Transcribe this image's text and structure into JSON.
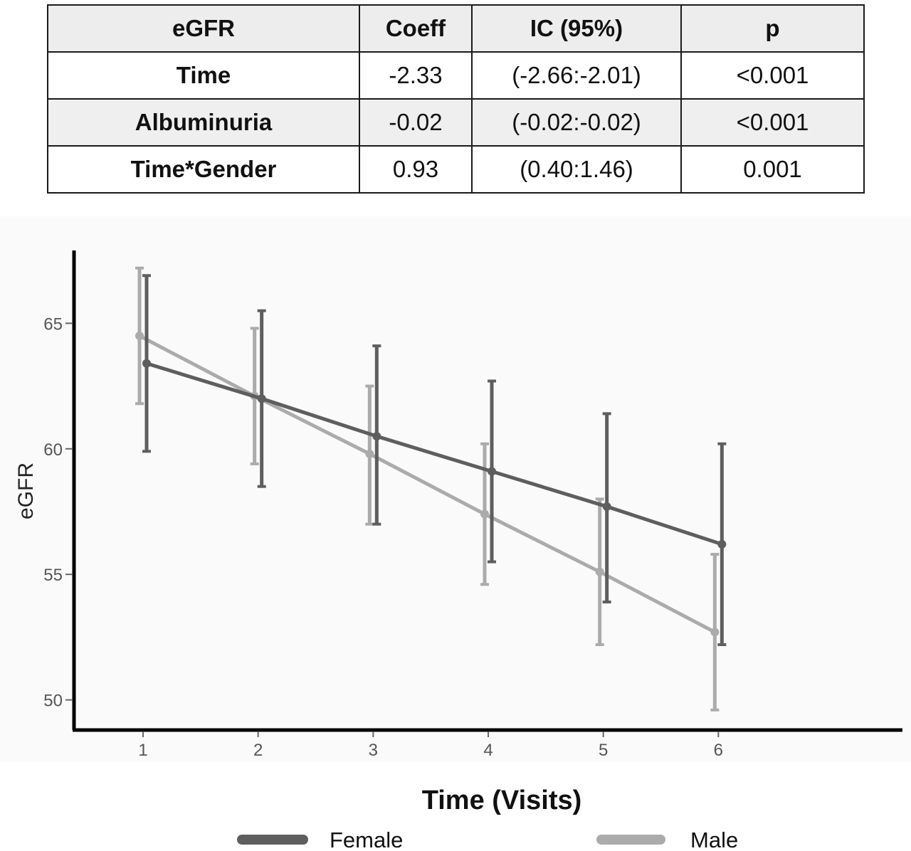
{
  "table": {
    "headers": [
      "eGFR",
      "Coeff",
      "IC (95%)",
      "p"
    ],
    "rows": [
      [
        "Time",
        "-2.33",
        "(-2.66:-2.01)",
        "<0.001"
      ],
      [
        "Albuminuria",
        "-0.02",
        "(-0.02:-0.02)",
        "<0.001"
      ],
      [
        "Time*Gender",
        "0.93",
        "(0.40:1.46)",
        "0.001"
      ]
    ]
  },
  "chart_data": {
    "type": "line",
    "xlabel": "Time (Visits)",
    "ylabel": "eGFR",
    "x": [
      1,
      2,
      3,
      4,
      5,
      6
    ],
    "xticks": [
      "1",
      "2",
      "3",
      "4",
      "5",
      "6"
    ],
    "yticks": [
      "50",
      "55",
      "60",
      "65"
    ],
    "xlim": [
      0.4,
      7.6
    ],
    "ylim": [
      48.8,
      67.9
    ],
    "grid": false,
    "legend_position": "bottom",
    "series": [
      {
        "name": "Female",
        "color": "#5e5e5e",
        "values": [
          63.4,
          62.0,
          60.5,
          59.1,
          57.7,
          56.2
        ],
        "ci_low": [
          59.9,
          58.5,
          57.0,
          55.5,
          53.9,
          52.2
        ],
        "ci_high": [
          66.9,
          65.5,
          64.1,
          62.7,
          61.4,
          60.2
        ]
      },
      {
        "name": "Male",
        "color": "#ababab",
        "values": [
          64.5,
          62.1,
          59.8,
          57.4,
          55.1,
          52.7
        ],
        "ci_low": [
          61.8,
          59.4,
          57.0,
          54.6,
          52.2,
          49.6
        ],
        "ci_high": [
          67.2,
          64.8,
          62.5,
          60.2,
          58.0,
          55.8
        ]
      }
    ]
  }
}
